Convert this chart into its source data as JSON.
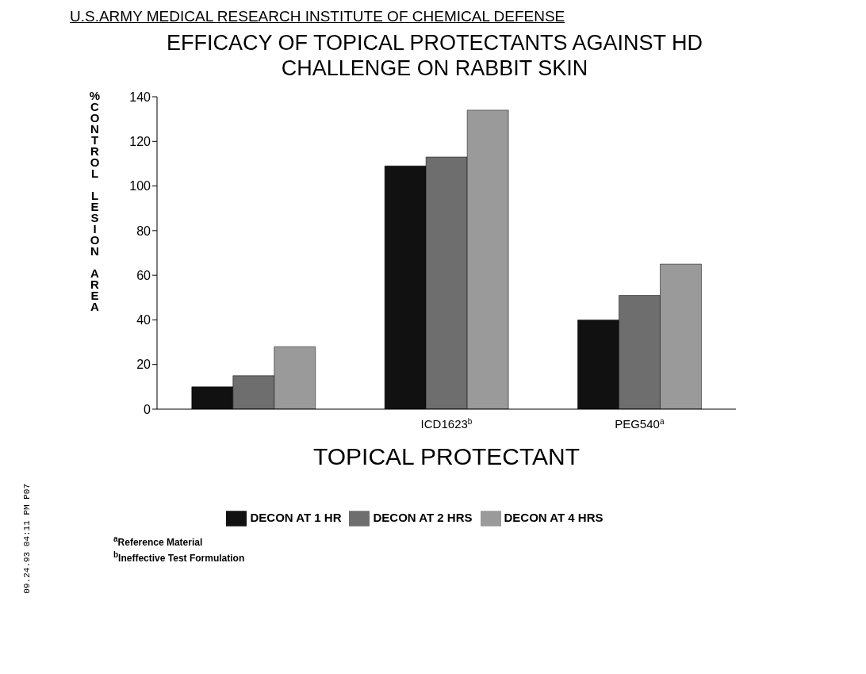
{
  "chart_data": {
    "type": "bar",
    "subtitle": "U.S.ARMY MEDICAL RESEARCH INSTITUTE OF CHEMICAL DEFENSE",
    "title": "EFFICACY OF TOPICAL PROTECTANTS AGAINST HD CHALLENGE ON RABBIT SKIN",
    "xlabel": "TOPICAL PROTECTANT",
    "ylabel": "%CONTROL LESION AREA",
    "categories": [
      null,
      "ICD1623$^{b}$",
      "PEG540$^{a}$"
    ],
    "series": [
      {
        "name": "DECON AT 1 HR",
        "color": "#111111",
        "values": [
          10,
          109,
          40
        ]
      },
      {
        "name": "DECON AT 2 HRS",
        "color": "#6e6e6e",
        "values": [
          15,
          113,
          51
        ]
      },
      {
        "name": "DECON AT 4 HRS",
        "color": "#9a9a9a",
        "values": [
          28,
          134,
          65
        ]
      }
    ],
    "ylim": [
      0,
      140
    ],
    "yticks": [
      0,
      20,
      40,
      60,
      80,
      100,
      120,
      140
    ],
    "grid": false,
    "legend": "bottom",
    "annotations": [
      "$^{a}$Reference Material",
      "$^{b}$Ineffective Test Formulation",
      "09.24.93 04:11 PM P07"
    ]
  }
}
